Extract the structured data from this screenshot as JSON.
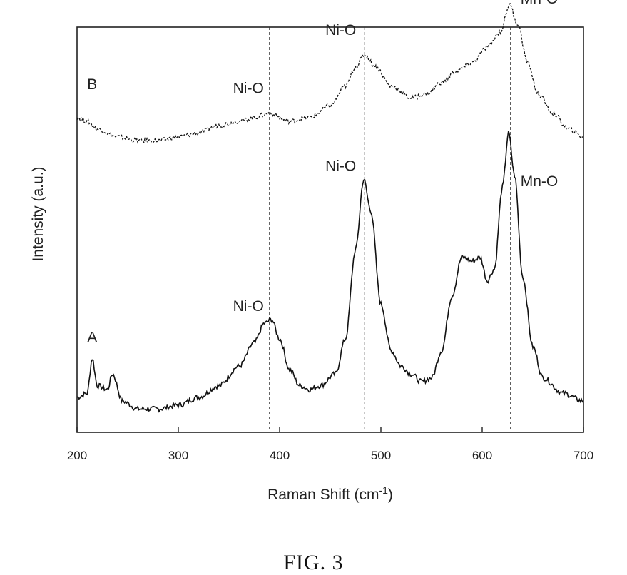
{
  "figure_caption": "FIG. 3",
  "chart_data": {
    "type": "line",
    "title": "",
    "xlabel": "Raman  Shift (cm",
    "xlabel_sup": "-1",
    "xlabel_end": ")",
    "ylabel": "Intensity (a.u.)",
    "xlim": [
      200,
      700
    ],
    "ylim": [
      0,
      1
    ],
    "x_ticks": [
      200,
      300,
      400,
      500,
      600,
      700
    ],
    "y_ticks_labeled": false,
    "reference_lines": [
      390,
      484,
      628
    ],
    "series": [
      {
        "name": "A",
        "style": "solid",
        "points": [
          [
            200,
            0.07
          ],
          [
            210,
            0.08
          ],
          [
            215,
            0.17
          ],
          [
            220,
            0.1
          ],
          [
            230,
            0.09
          ],
          [
            235,
            0.13
          ],
          [
            245,
            0.06
          ],
          [
            260,
            0.04
          ],
          [
            280,
            0.04
          ],
          [
            300,
            0.05
          ],
          [
            320,
            0.07
          ],
          [
            340,
            0.1
          ],
          [
            360,
            0.15
          ],
          [
            375,
            0.21
          ],
          [
            385,
            0.26
          ],
          [
            392,
            0.27
          ],
          [
            400,
            0.22
          ],
          [
            410,
            0.14
          ],
          [
            420,
            0.1
          ],
          [
            430,
            0.09
          ],
          [
            440,
            0.1
          ],
          [
            455,
            0.13
          ],
          [
            465,
            0.22
          ],
          [
            475,
            0.45
          ],
          [
            483,
            0.63
          ],
          [
            490,
            0.55
          ],
          [
            500,
            0.31
          ],
          [
            510,
            0.19
          ],
          [
            520,
            0.15
          ],
          [
            530,
            0.13
          ],
          [
            540,
            0.11
          ],
          [
            550,
            0.12
          ],
          [
            560,
            0.19
          ],
          [
            570,
            0.33
          ],
          [
            580,
            0.43
          ],
          [
            590,
            0.42
          ],
          [
            598,
            0.43
          ],
          [
            605,
            0.37
          ],
          [
            612,
            0.4
          ],
          [
            620,
            0.61
          ],
          [
            626,
            0.75
          ],
          [
            632,
            0.64
          ],
          [
            640,
            0.38
          ],
          [
            650,
            0.2
          ],
          [
            660,
            0.12
          ],
          [
            680,
            0.08
          ],
          [
            700,
            0.06
          ]
        ],
        "labels": [
          {
            "text": "A",
            "x": 215,
            "y": 0.19
          },
          {
            "text": "Ni-O",
            "x": 390,
            "y": 0.27
          },
          {
            "text": "Ni-O",
            "x": 484,
            "y": 0.63
          },
          {
            "text": "Mn-O",
            "x": 628,
            "y": 0.62
          }
        ]
      },
      {
        "name": "B",
        "style": "dashed",
        "points": [
          [
            200,
            0.79
          ],
          [
            210,
            0.78
          ],
          [
            220,
            0.76
          ],
          [
            240,
            0.74
          ],
          [
            260,
            0.73
          ],
          [
            280,
            0.73
          ],
          [
            300,
            0.74
          ],
          [
            320,
            0.75
          ],
          [
            340,
            0.77
          ],
          [
            360,
            0.78
          ],
          [
            375,
            0.79
          ],
          [
            390,
            0.8
          ],
          [
            410,
            0.78
          ],
          [
            430,
            0.79
          ],
          [
            450,
            0.82
          ],
          [
            465,
            0.87
          ],
          [
            475,
            0.92
          ],
          [
            484,
            0.95
          ],
          [
            495,
            0.92
          ],
          [
            510,
            0.87
          ],
          [
            530,
            0.84
          ],
          [
            545,
            0.85
          ],
          [
            560,
            0.88
          ],
          [
            575,
            0.91
          ],
          [
            590,
            0.93
          ],
          [
            605,
            0.97
          ],
          [
            618,
            1.01
          ],
          [
            627,
            1.08
          ],
          [
            635,
            1.03
          ],
          [
            645,
            0.93
          ],
          [
            655,
            0.85
          ],
          [
            670,
            0.8
          ],
          [
            685,
            0.76
          ],
          [
            700,
            0.74
          ]
        ],
        "labels": [
          {
            "text": "B",
            "x": 215,
            "y": 0.84
          },
          {
            "text": "Ni-O",
            "x": 390,
            "y": 0.83
          },
          {
            "text": "Ni-O",
            "x": 484,
            "y": 0.98
          },
          {
            "text": "Mn-O",
            "x": 628,
            "y": 1.09
          }
        ]
      }
    ]
  }
}
